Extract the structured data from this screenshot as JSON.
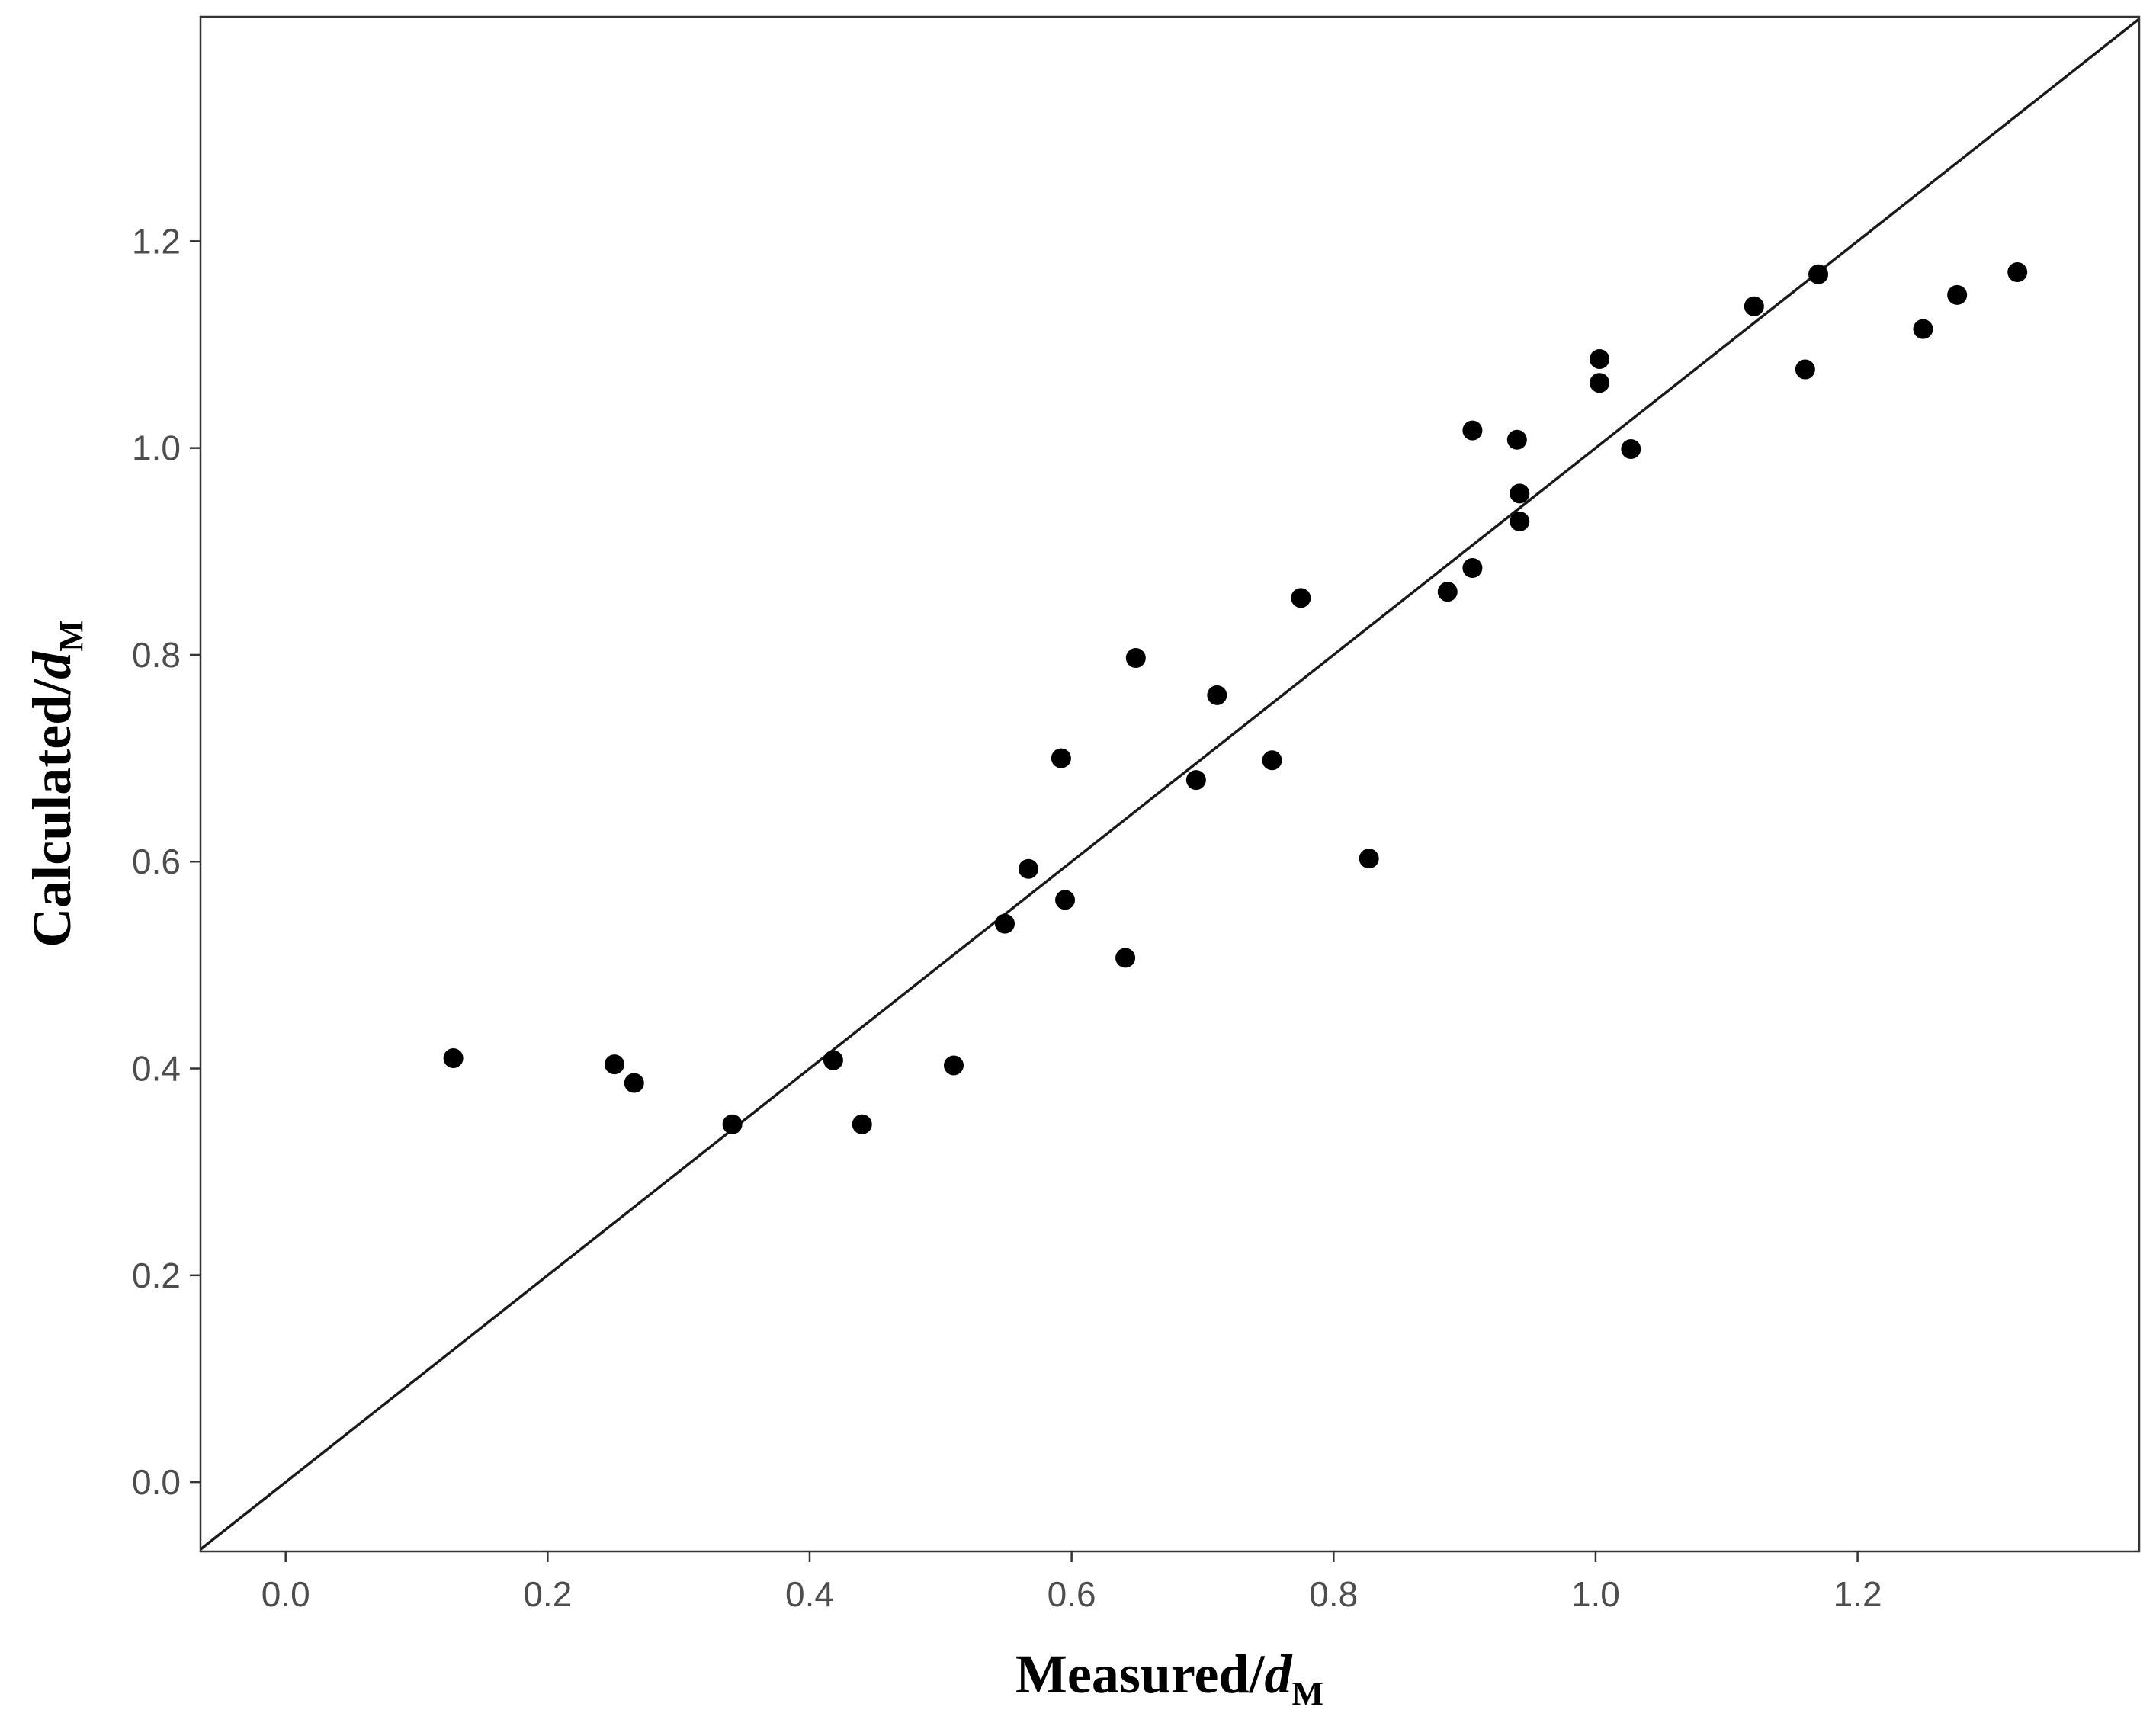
{
  "chart_data": {
    "type": "scatter",
    "xlabel": {
      "text": "Measured/",
      "var": "d",
      "sub": "M"
    },
    "ylabel": {
      "text": "Calculated/",
      "var": "d",
      "sub": "M"
    },
    "xlim": [
      -0.065,
      1.415
    ],
    "ylim": [
      -0.067,
      1.417
    ],
    "x_ticks": [
      "0.0",
      "0.2",
      "0.4",
      "0.6",
      "0.8",
      "1.0",
      "1.2"
    ],
    "y_ticks": [
      "0.0",
      "0.2",
      "0.4",
      "0.6",
      "0.8",
      "1.0",
      "1.2"
    ],
    "reference_line": {
      "type": "identity",
      "label": ""
    },
    "grid": false,
    "legend": "none",
    "colors": {
      "points": "#000000",
      "line": "#000000",
      "frame": "#333333",
      "ticks": "#4d4d4d"
    },
    "series": [
      {
        "points": [
          {
            "x": 0.128,
            "y": 0.41
          },
          {
            "x": 0.251,
            "y": 0.404
          },
          {
            "x": 0.266,
            "y": 0.386
          },
          {
            "x": 0.341,
            "y": 0.346
          },
          {
            "x": 0.418,
            "y": 0.408
          },
          {
            "x": 0.44,
            "y": 0.346
          },
          {
            "x": 0.51,
            "y": 0.403
          },
          {
            "x": 0.549,
            "y": 0.54
          },
          {
            "x": 0.567,
            "y": 0.593
          },
          {
            "x": 0.592,
            "y": 0.7
          },
          {
            "x": 0.595,
            "y": 0.563
          },
          {
            "x": 0.641,
            "y": 0.507
          },
          {
            "x": 0.649,
            "y": 0.797
          },
          {
            "x": 0.695,
            "y": 0.679
          },
          {
            "x": 0.711,
            "y": 0.761
          },
          {
            "x": 0.753,
            "y": 0.698
          },
          {
            "x": 0.775,
            "y": 0.855
          },
          {
            "x": 0.827,
            "y": 0.603
          },
          {
            "x": 0.887,
            "y": 0.861
          },
          {
            "x": 0.906,
            "y": 0.884
          },
          {
            "x": 0.906,
            "y": 1.017
          },
          {
            "x": 0.94,
            "y": 1.008
          },
          {
            "x": 0.942,
            "y": 0.956
          },
          {
            "x": 0.942,
            "y": 0.929
          },
          {
            "x": 1.003,
            "y": 1.086
          },
          {
            "x": 1.003,
            "y": 1.063
          },
          {
            "x": 1.027,
            "y": 0.999
          },
          {
            "x": 1.121,
            "y": 1.137
          },
          {
            "x": 1.16,
            "y": 1.076
          },
          {
            "x": 1.17,
            "y": 1.168
          },
          {
            "x": 1.25,
            "y": 1.115
          },
          {
            "x": 1.276,
            "y": 1.148
          },
          {
            "x": 1.322,
            "y": 1.17
          }
        ]
      }
    ]
  }
}
